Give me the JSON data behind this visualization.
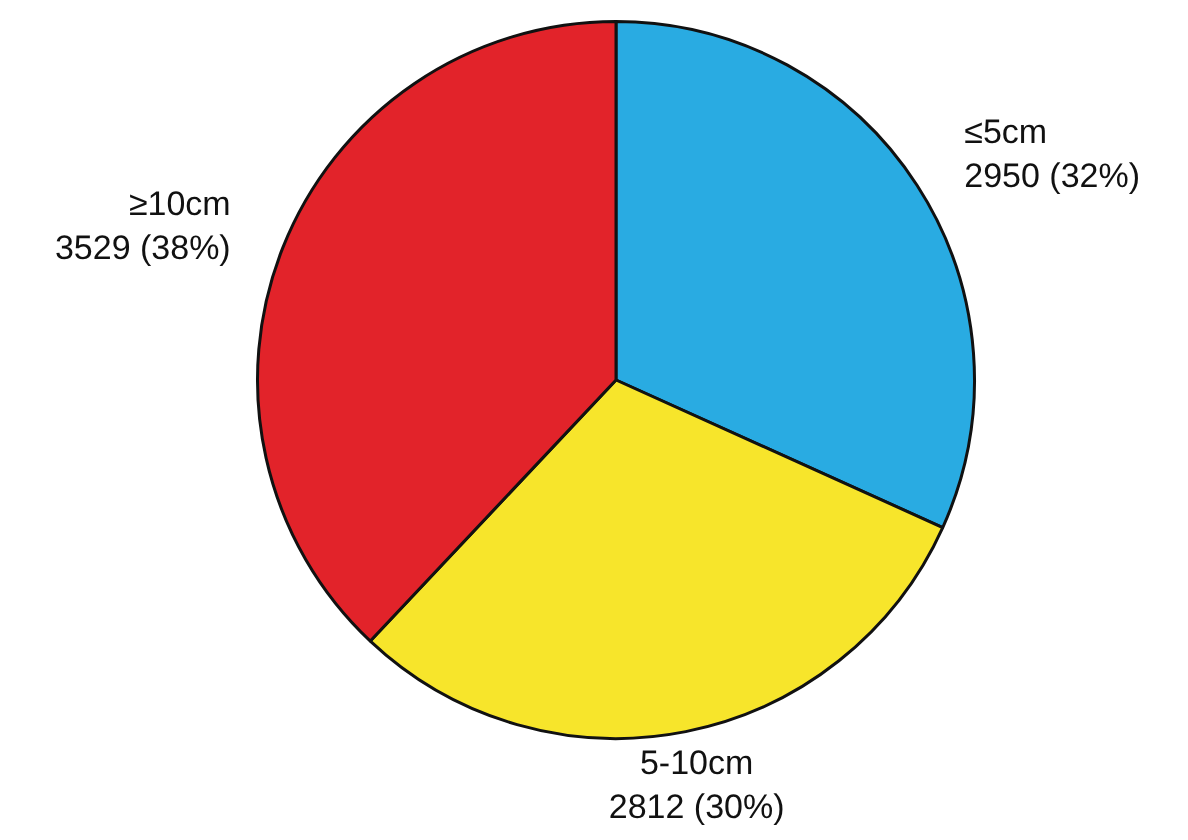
{
  "chart_data": {
    "type": "pie",
    "categories": [
      "≤5cm",
      "5-10cm",
      "≥10cm"
    ],
    "values": [
      2950,
      2812,
      3529
    ],
    "value_labels": [
      "2950 (32%)",
      "2812 (30%)",
      "3529 (38%)"
    ],
    "colors": [
      "#29abe2",
      "#f7e52b",
      "#e2232a"
    ],
    "legend": false
  }
}
